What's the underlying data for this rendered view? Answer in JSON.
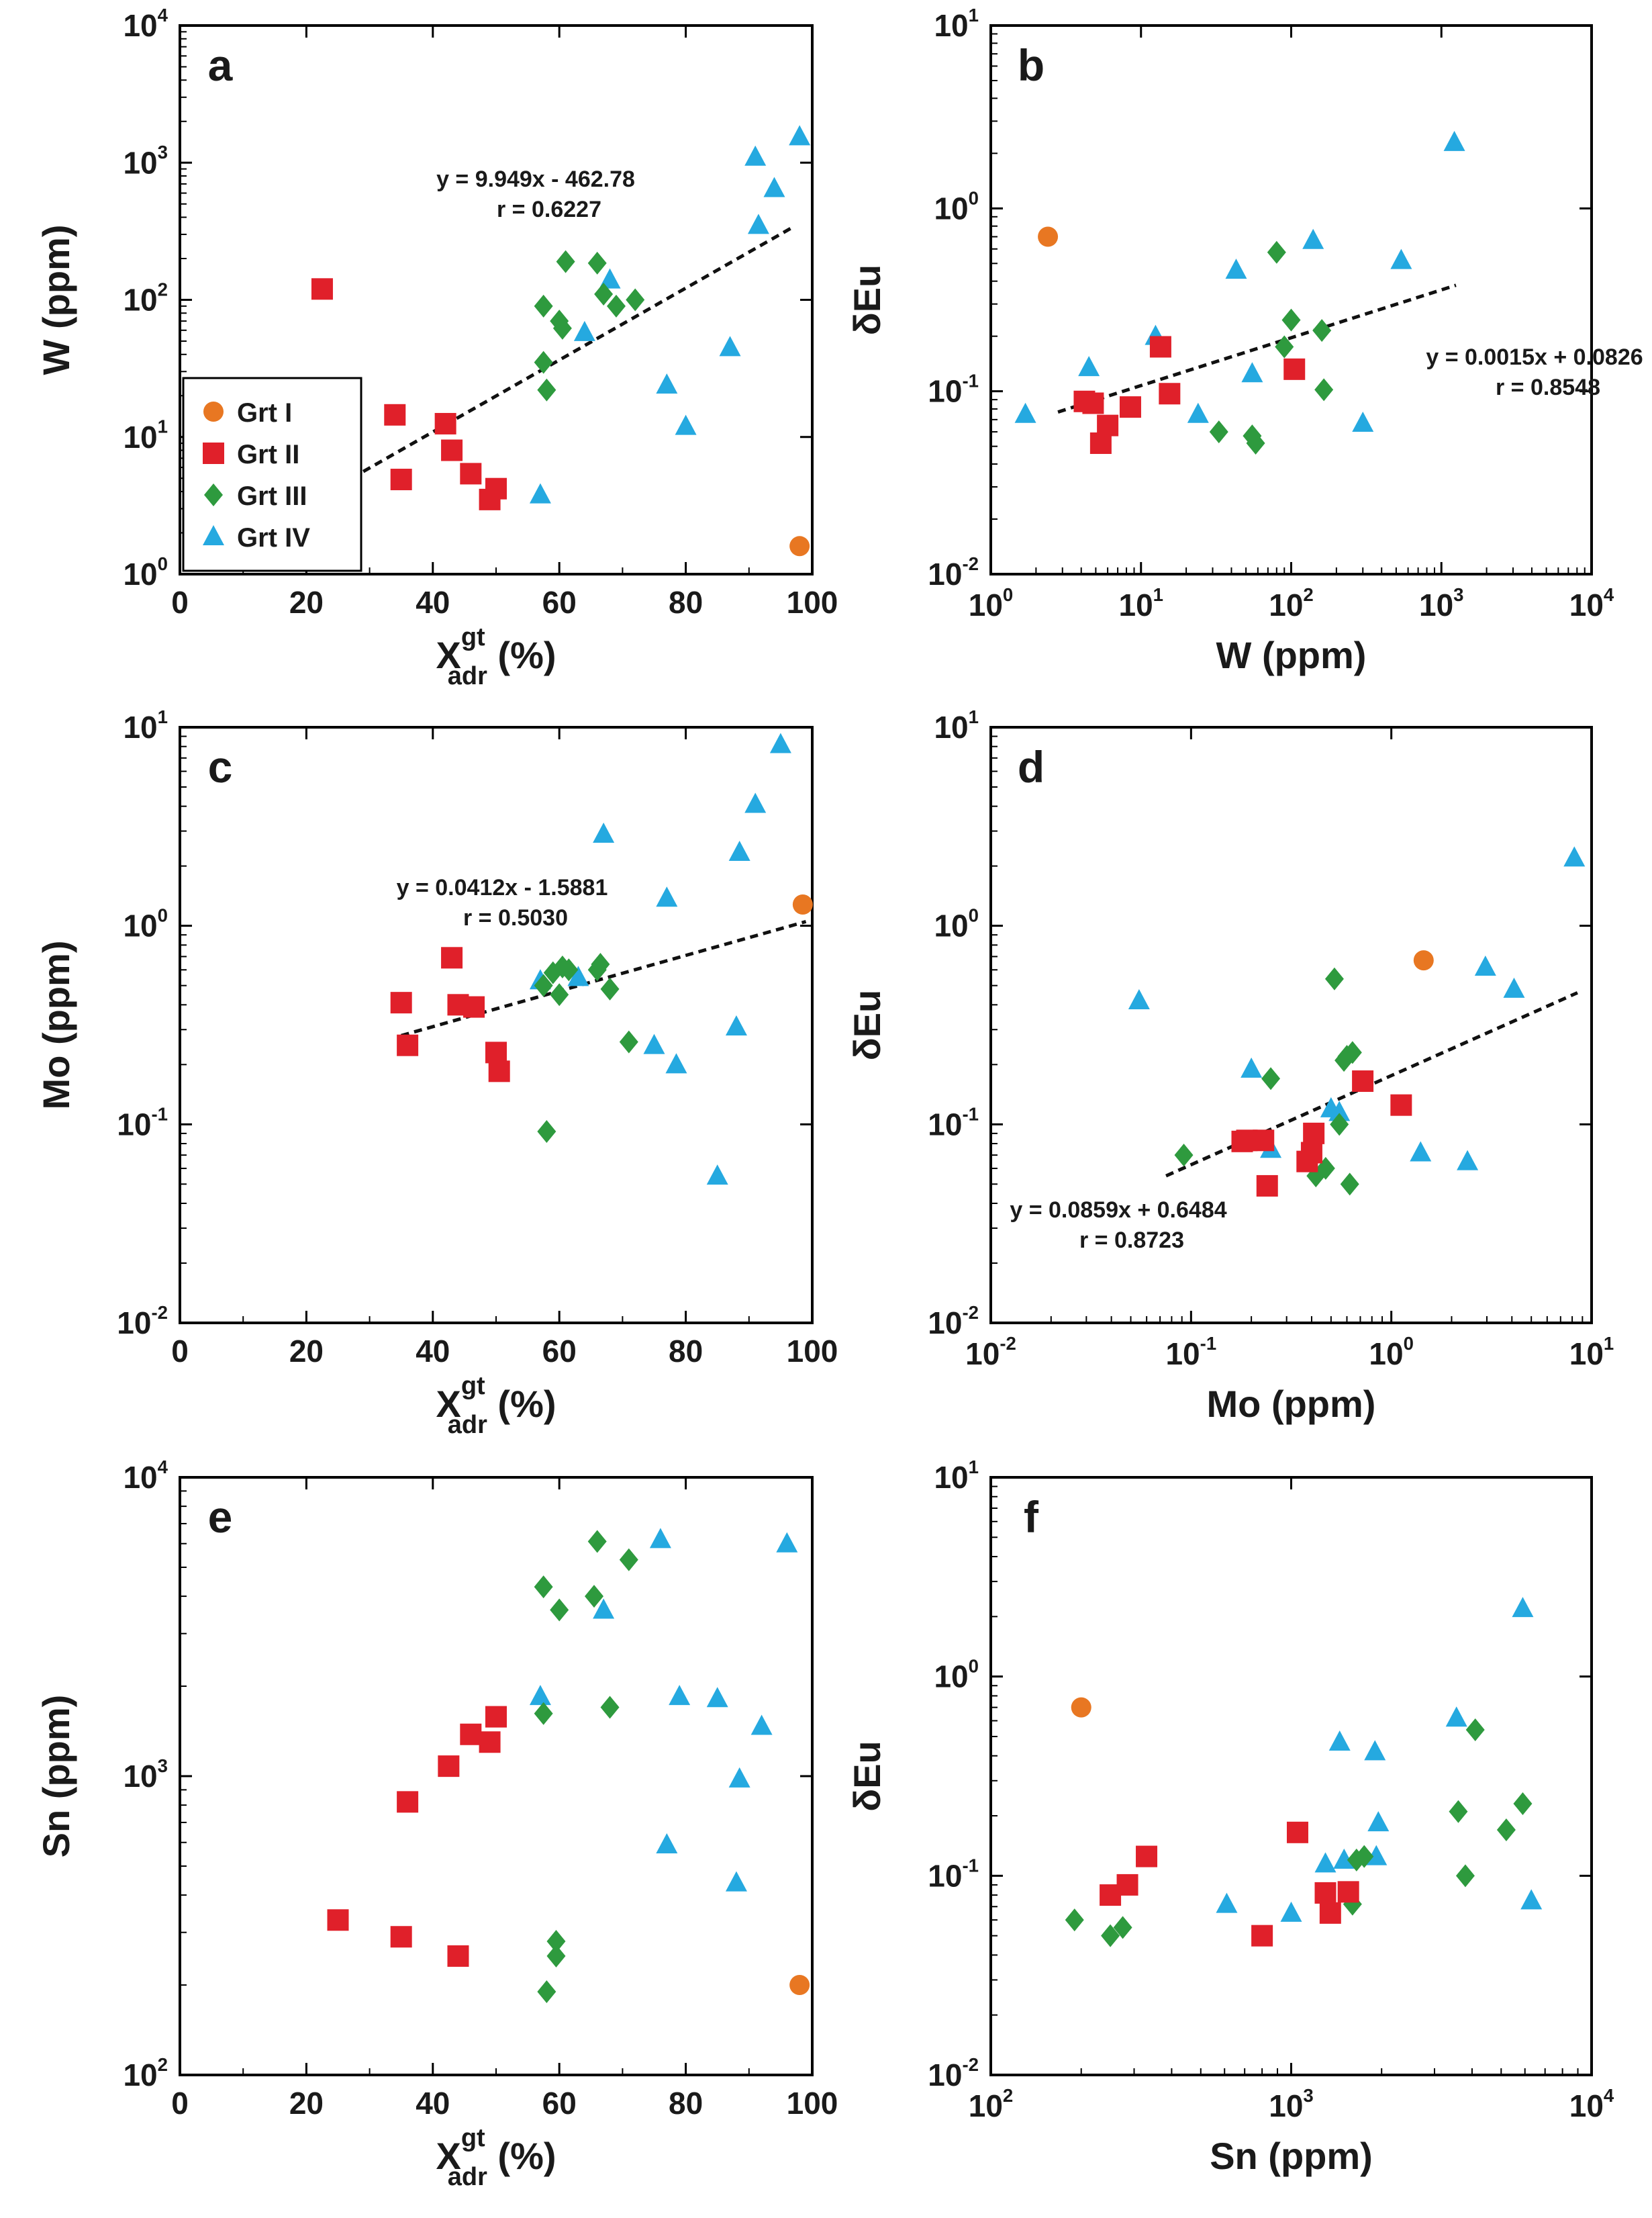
{
  "legend": {
    "items": [
      {
        "key": "grtI",
        "label": "Grt I",
        "marker": "circle",
        "color": "#e87722"
      },
      {
        "key": "grtII",
        "label": "Grt II",
        "marker": "square",
        "color": "#e0202a"
      },
      {
        "key": "grtIII",
        "label": "Grt III",
        "marker": "diamond",
        "color": "#2e9a3e"
      },
      {
        "key": "grtIV",
        "label": "Grt IV",
        "marker": "triangle",
        "color": "#25a9e0"
      }
    ]
  },
  "chart_data": [
    {
      "id": "a",
      "panel_label": "a",
      "type": "scatter",
      "xscale": "linear",
      "yscale": "log",
      "xlim": [
        0,
        100
      ],
      "ylim": [
        1,
        10000
      ],
      "xticks": [
        0,
        20,
        40,
        60,
        80,
        100
      ],
      "xtick_labels": [
        "0",
        "20",
        "40",
        "60",
        "80",
        "100"
      ],
      "yticks": [
        1,
        10,
        100,
        1000,
        10000
      ],
      "ytick_labels": [
        [
          "10",
          "0"
        ],
        [
          "10",
          "1"
        ],
        [
          "10",
          "2"
        ],
        [
          "10",
          "3"
        ],
        [
          "10",
          "4"
        ]
      ],
      "xlabel": {
        "main": "X",
        "sup": "gt",
        "sub": "adr",
        "suffix": " (%)"
      },
      "ylabel": "W (ppm)",
      "equation": "y = 9.949x - 462.78",
      "r_text": "r = 0.6227",
      "show_legend": true,
      "fit": {
        "x": [
          29,
          97
        ],
        "y": [
          5.6,
          340
        ]
      },
      "series": [
        {
          "key": "grtI",
          "x": [
            98
          ],
          "y": [
            1.6
          ]
        },
        {
          "key": "grtII",
          "x": [
            22.5,
            34,
            35,
            42,
            43,
            46,
            49,
            50
          ],
          "y": [
            120,
            14.5,
            4.9,
            12.5,
            8,
            5.4,
            3.5,
            4.2
          ]
        },
        {
          "key": "grtIII",
          "x": [
            57.5,
            57.5,
            58,
            60,
            60.5,
            61,
            66,
            67,
            69,
            72
          ],
          "y": [
            90,
            35,
            22,
            70,
            62,
            190,
            185,
            110,
            90,
            100
          ]
        },
        {
          "key": "grtIV",
          "x": [
            57,
            64,
            68,
            77,
            80,
            87,
            91,
            91.5,
            94,
            98
          ],
          "y": [
            3.8,
            58,
            140,
            24,
            12,
            45,
            1100,
            350,
            650,
            1550
          ]
        }
      ]
    },
    {
      "id": "b",
      "panel_label": "b",
      "type": "scatter",
      "xscale": "log",
      "yscale": "log",
      "xlim": [
        1,
        10000
      ],
      "ylim": [
        0.01,
        10
      ],
      "xticks": [
        1,
        10,
        100,
        1000,
        10000
      ],
      "xtick_labels": [
        [
          "10",
          "0"
        ],
        [
          "10",
          "1"
        ],
        [
          "10",
          "2"
        ],
        [
          "10",
          "3"
        ],
        [
          "10",
          "4"
        ]
      ],
      "yticks": [
        0.01,
        0.1,
        1,
        10
      ],
      "ytick_labels": [
        [
          "10",
          "-2"
        ],
        [
          "10",
          "-1"
        ],
        [
          "10",
          "0"
        ],
        [
          "10",
          "1"
        ]
      ],
      "xlabel": {
        "main": "W (ppm)"
      },
      "ylabel": "δEu",
      "equation": "y = 0.0015x + 0.0826",
      "r_text": "r = 0.8548",
      "show_legend": false,
      "fit": {
        "x": [
          2.8,
          1250
        ],
        "y": [
          0.077,
          0.38
        ]
      },
      "series": [
        {
          "key": "grtI",
          "x": [
            2.4
          ],
          "y": [
            0.7
          ]
        },
        {
          "key": "grtII",
          "x": [
            4.2,
            4.8,
            5.4,
            6,
            8.5,
            13.5,
            15.5,
            105
          ],
          "y": [
            0.088,
            0.086,
            0.052,
            0.065,
            0.082,
            0.175,
            0.097,
            0.132
          ]
        },
        {
          "key": "grtIII",
          "x": [
            33,
            55,
            58,
            80,
            90,
            100,
            160,
            165
          ],
          "y": [
            0.06,
            0.057,
            0.052,
            0.575,
            0.175,
            0.245,
            0.215,
            0.102
          ]
        },
        {
          "key": "grtIV",
          "x": [
            1.7,
            4.5,
            12.5,
            24,
            43,
            55,
            140,
            300,
            540,
            1220
          ],
          "y": [
            0.075,
            0.135,
            0.2,
            0.075,
            0.46,
            0.125,
            0.67,
            0.067,
            0.52,
            2.3
          ]
        }
      ]
    },
    {
      "id": "c",
      "panel_label": "c",
      "type": "scatter",
      "xscale": "linear",
      "yscale": "log",
      "xlim": [
        0,
        100
      ],
      "ylim": [
        0.01,
        10
      ],
      "xticks": [
        0,
        20,
        40,
        60,
        80,
        100
      ],
      "xtick_labels": [
        "0",
        "20",
        "40",
        "60",
        "80",
        "100"
      ],
      "yticks": [
        0.01,
        0.1,
        1,
        10
      ],
      "ytick_labels": [
        [
          "10",
          "-2"
        ],
        [
          "10",
          "-1"
        ],
        [
          "10",
          "0"
        ],
        [
          "10",
          "1"
        ]
      ],
      "xlabel": {
        "main": "X",
        "sup": "gt",
        "sub": "adr",
        "suffix": " (%)"
      },
      "ylabel": "Mo (ppm)",
      "equation": "y = 0.0412x - 1.5881",
      "r_text": "r = 0.5030",
      "show_legend": false,
      "fit": {
        "x": [
          35,
          99
        ],
        "y": [
          0.28,
          1.05
        ]
      },
      "series": [
        {
          "key": "grtI",
          "x": [
            98.5
          ],
          "y": [
            1.28
          ]
        },
        {
          "key": "grtII",
          "x": [
            35,
            36,
            43,
            44,
            46.5,
            50,
            50.5
          ],
          "y": [
            0.41,
            0.25,
            0.69,
            0.4,
            0.39,
            0.23,
            0.185
          ]
        },
        {
          "key": "grtIII",
          "x": [
            57.5,
            58,
            59,
            60,
            60.5,
            61.5,
            66,
            66.5,
            68,
            71
          ],
          "y": [
            0.5,
            0.092,
            0.58,
            0.45,
            0.62,
            0.6,
            0.6,
            0.64,
            0.48,
            0.26
          ]
        },
        {
          "key": "grtIV",
          "x": [
            57,
            63,
            67,
            75,
            77,
            78.5,
            85,
            88,
            88.5,
            91,
            95
          ],
          "y": [
            0.53,
            0.55,
            2.9,
            0.25,
            1.38,
            0.2,
            0.055,
            0.31,
            2.35,
            4.1,
            8.2
          ]
        }
      ]
    },
    {
      "id": "d",
      "panel_label": "d",
      "type": "scatter",
      "xscale": "log",
      "yscale": "log",
      "xlim": [
        0.01,
        10
      ],
      "ylim": [
        0.01,
        10
      ],
      "xticks": [
        0.01,
        0.1,
        1,
        10
      ],
      "xtick_labels": [
        [
          "10",
          "-2"
        ],
        [
          "10",
          "-1"
        ],
        [
          "10",
          "0"
        ],
        [
          "10",
          "1"
        ]
      ],
      "yticks": [
        0.01,
        0.1,
        1,
        10
      ],
      "ytick_labels": [
        [
          "10",
          "-2"
        ],
        [
          "10",
          "-1"
        ],
        [
          "10",
          "0"
        ],
        [
          "10",
          "1"
        ]
      ],
      "xlabel": {
        "main": "Mo (ppm)"
      },
      "ylabel": "δEu",
      "equation": "y = 0.0859x + 0.6484",
      "r_text": "r = 0.8723",
      "show_legend": false,
      "fit": {
        "x": [
          0.075,
          8.5
        ],
        "y": [
          0.055,
          0.46
        ]
      },
      "series": [
        {
          "key": "grtI",
          "x": [
            1.45
          ],
          "y": [
            0.67
          ]
        },
        {
          "key": "grtII",
          "x": [
            0.18,
            0.19,
            0.23,
            0.24,
            0.38,
            0.4,
            0.41,
            0.72,
            1.12
          ],
          "y": [
            0.082,
            0.083,
            0.083,
            0.049,
            0.065,
            0.072,
            0.09,
            0.165,
            0.125
          ]
        },
        {
          "key": "grtIII",
          "x": [
            0.092,
            0.25,
            0.42,
            0.47,
            0.52,
            0.55,
            0.58,
            0.6,
            0.62,
            0.64
          ],
          "y": [
            0.07,
            0.17,
            0.055,
            0.06,
            0.54,
            0.1,
            0.21,
            0.22,
            0.05,
            0.23
          ]
        },
        {
          "key": "grtIV",
          "x": [
            0.055,
            0.2,
            0.25,
            0.5,
            0.55,
            1.4,
            2.4,
            2.95,
            4.1,
            8.2
          ],
          "y": [
            0.42,
            0.19,
            0.075,
            0.12,
            0.115,
            0.072,
            0.065,
            0.62,
            0.48,
            2.2
          ]
        }
      ]
    },
    {
      "id": "e",
      "panel_label": "e",
      "type": "scatter",
      "xscale": "linear",
      "yscale": "log",
      "xlim": [
        0,
        100
      ],
      "ylim": [
        100,
        10000
      ],
      "xticks": [
        0,
        20,
        40,
        60,
        80,
        100
      ],
      "xtick_labels": [
        "0",
        "20",
        "40",
        "60",
        "80",
        "100"
      ],
      "yticks": [
        100,
        1000,
        10000
      ],
      "ytick_labels": [
        [
          "10",
          "2"
        ],
        [
          "10",
          "3"
        ],
        [
          "10",
          "4"
        ]
      ],
      "xlabel": {
        "main": "X",
        "sup": "gt",
        "sub": "adr",
        "suffix": " (%)"
      },
      "ylabel": "Sn (ppm)",
      "equation": "",
      "r_text": "",
      "show_legend": false,
      "fit": null,
      "series": [
        {
          "key": "grtI",
          "x": [
            98
          ],
          "y": [
            200
          ]
        },
        {
          "key": "grtII",
          "x": [
            25,
            35,
            36,
            42.5,
            44,
            46,
            49,
            50
          ],
          "y": [
            330,
            290,
            820,
            1080,
            250,
            1380,
            1300,
            1580
          ]
        },
        {
          "key": "grtIII",
          "x": [
            57.5,
            57.5,
            58,
            59.5,
            59.5,
            60,
            65.5,
            66,
            68,
            71
          ],
          "y": [
            4300,
            1620,
            190,
            250,
            280,
            3600,
            4000,
            6100,
            1700,
            5300
          ]
        },
        {
          "key": "grtIV",
          "x": [
            57,
            67,
            76,
            77,
            79,
            85,
            88,
            88.5,
            92,
            96
          ],
          "y": [
            1850,
            3600,
            6200,
            590,
            1850,
            1820,
            440,
            980,
            1470,
            6000
          ]
        }
      ]
    },
    {
      "id": "f",
      "panel_label": "f",
      "type": "scatter",
      "xscale": "log",
      "yscale": "log",
      "xlim": [
        100,
        10000
      ],
      "ylim": [
        0.01,
        10
      ],
      "xticks": [
        100,
        1000,
        10000
      ],
      "xtick_labels": [
        [
          "10",
          "2"
        ],
        [
          "10",
          "3"
        ],
        [
          "10",
          "4"
        ]
      ],
      "yticks": [
        0.01,
        0.1,
        1,
        10
      ],
      "ytick_labels": [
        [
          "10",
          "-2"
        ],
        [
          "10",
          "-1"
        ],
        [
          "10",
          "0"
        ],
        [
          "10",
          "1"
        ]
      ],
      "xlabel": {
        "main": "Sn (ppm)"
      },
      "ylabel": "δEu",
      "equation": "",
      "r_text": "",
      "show_legend": false,
      "fit": null,
      "series": [
        {
          "key": "grtI",
          "x": [
            200
          ],
          "y": [
            0.7
          ]
        },
        {
          "key": "grtII",
          "x": [
            250,
            285,
            330,
            800,
            1050,
            1300,
            1350,
            1550
          ],
          "y": [
            0.08,
            0.09,
            0.125,
            0.05,
            0.165,
            0.082,
            0.065,
            0.083
          ]
        },
        {
          "key": "grtIII",
          "x": [
            190,
            250,
            275,
            1600,
            1650,
            1750,
            3600,
            3800,
            4100,
            5200,
            5900
          ],
          "y": [
            0.06,
            0.05,
            0.055,
            0.072,
            0.12,
            0.125,
            0.21,
            0.1,
            0.54,
            0.17,
            0.23
          ]
        },
        {
          "key": "grtIV",
          "x": [
            610,
            1000,
            1300,
            1450,
            1500,
            1900,
            1920,
            1950,
            3550,
            5900,
            6300
          ],
          "y": [
            0.072,
            0.065,
            0.115,
            0.47,
            0.12,
            0.42,
            0.125,
            0.185,
            0.62,
            2.2,
            0.075
          ]
        }
      ]
    }
  ]
}
